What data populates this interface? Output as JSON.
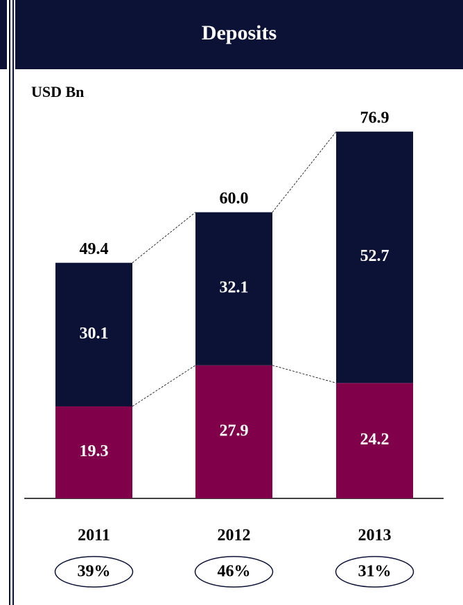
{
  "chart_data": {
    "type": "stacked-bar",
    "title": "Deposits",
    "unit_label": "USD Bn",
    "categories": [
      "2011",
      "2012",
      "2013"
    ],
    "series": [
      {
        "color": "#80004a",
        "values": [
          19.3,
          27.9,
          24.2
        ]
      },
      {
        "color": "#0c1236",
        "values": [
          30.1,
          32.1,
          52.7
        ]
      }
    ],
    "totals": {
      "values": [
        49.4,
        60,
        76.9
      ],
      "value_labels": [
        "49.4",
        "60.0",
        "76.9"
      ]
    },
    "shares": [
      "39%",
      "46%",
      "31%"
    ],
    "ylim": [
      0,
      80
    ]
  }
}
